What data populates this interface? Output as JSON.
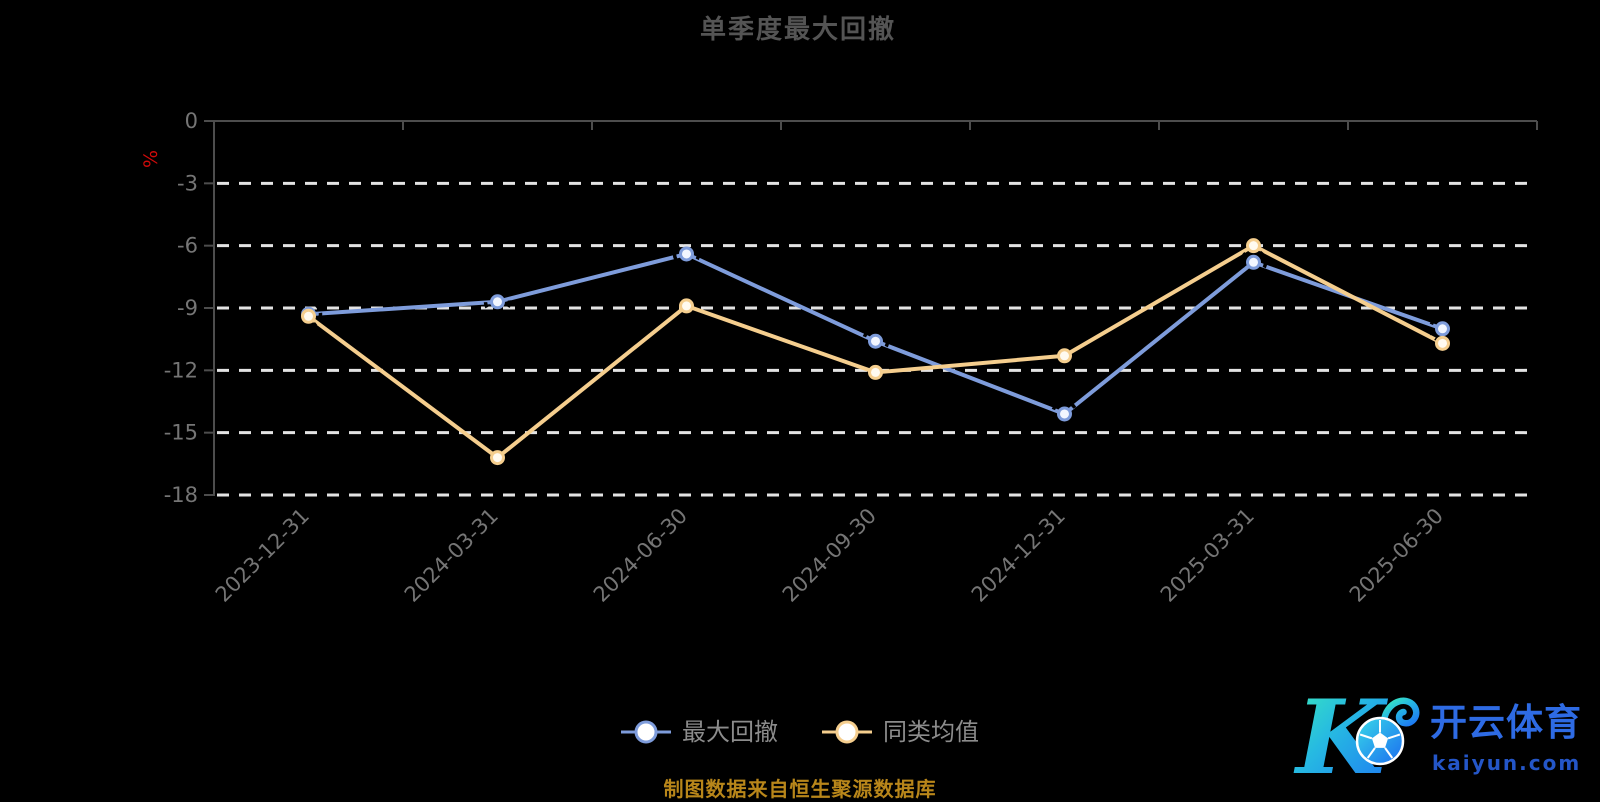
{
  "title": "单季度最大回撤",
  "caption": "制图数据来自恒生聚源数据库",
  "y_axis_unit": "%",
  "colors": {
    "background": "#000000",
    "title_text": "#545454",
    "axis_line": "#4d4d4d",
    "axis_label": "#757575",
    "gridline": "#e3e3e3",
    "unit_label_red": "#cf0a0a",
    "series_blue": "#7e9cdb",
    "series_orange": "#f5ce8e",
    "legend_text": "#8c8c8c",
    "caption_gold": "#b8861a",
    "logo_blue": "#2e6be4",
    "logo_gradient_start": "#3bedbb",
    "logo_gradient_end": "#1e7cf2"
  },
  "chart_data": {
    "type": "line",
    "title": "单季度最大回撤",
    "categories": [
      "2023-12-31",
      "2024-03-31",
      "2024-06-30",
      "2024-09-30",
      "2024-12-31",
      "2025-03-31",
      "2025-06-30"
    ],
    "series": [
      {
        "name": "最大回撤",
        "color": "#7e9cdb",
        "marker_fill": "#f2f6ff",
        "values": [
          -9.3,
          -8.7,
          -6.4,
          -10.6,
          -14.1,
          -6.8,
          -10.0
        ]
      },
      {
        "name": "同类均值",
        "color": "#f5ce8e",
        "marker_fill": "#fffaf0",
        "values": [
          -9.4,
          -16.2,
          -8.9,
          -12.1,
          -11.3,
          -6.0,
          -10.7
        ]
      }
    ],
    "xlabel": "",
    "ylabel": "%",
    "ylim": [
      -18,
      0
    ],
    "y_ticks": [
      0,
      -3,
      -6,
      -9,
      -12,
      -15,
      -18
    ],
    "grid": true,
    "gridline_style": "dashed",
    "x_label_rotation": -45,
    "legend_position": "bottom"
  },
  "legend": {
    "items": [
      {
        "label": "最大回撤",
        "color": "#7e9cdb"
      },
      {
        "label": "同类均值",
        "color": "#f5ce8e"
      }
    ]
  },
  "logo": {
    "monogram": "K",
    "brand": "开云体育",
    "domain": "kaiyun.com"
  }
}
